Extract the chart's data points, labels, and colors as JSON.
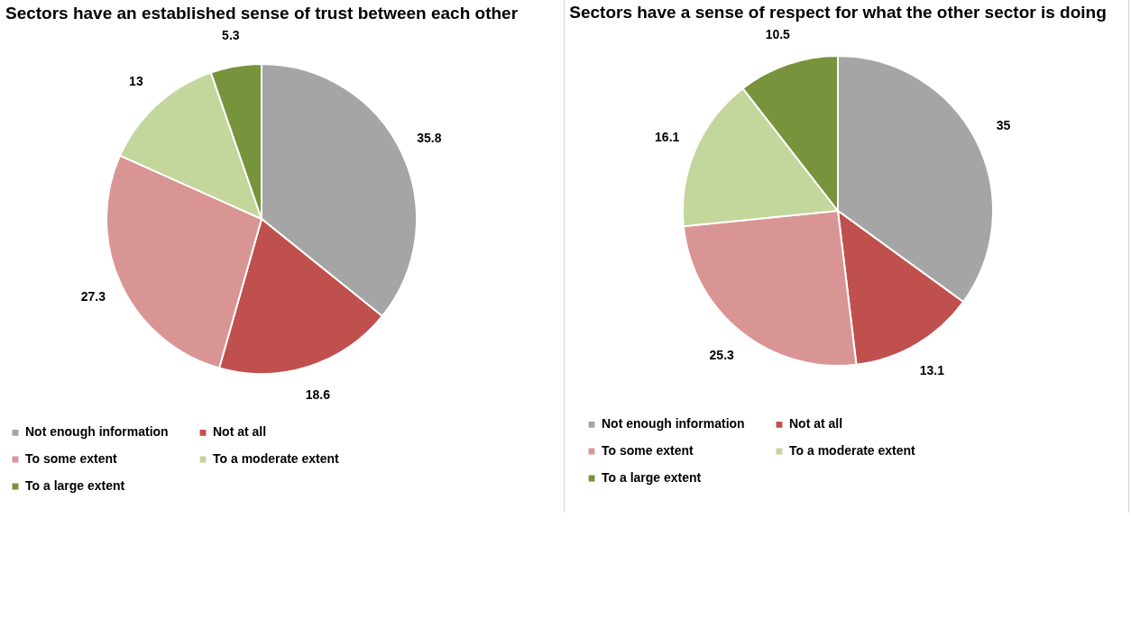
{
  "chart_data": [
    {
      "type": "pie",
      "title": "Sectors have an established sense of\ntrust between each other",
      "categories": [
        "Not enough information",
        "Not at all",
        "To some extent",
        "To a moderate extent",
        "To a large extent"
      ],
      "values": [
        35.8,
        18.6,
        27.3,
        13,
        5.3
      ],
      "colors": [
        "#a5a5a5",
        "#c0504d",
        "#d99594",
        "#c3d69b",
        "#77933c"
      ],
      "data_labels": true,
      "legend": "bottom"
    },
    {
      "type": "pie",
      "title": "Sectors have a sense of respect for\nwhat the other sector is doing",
      "categories": [
        "Not enough information",
        "Not at all",
        "To some extent",
        "To a moderate extent",
        "To a large extent"
      ],
      "values": [
        35,
        13.1,
        25.3,
        16.1,
        10.5
      ],
      "colors": [
        "#a5a5a5",
        "#c0504d",
        "#d99594",
        "#c3d69b",
        "#77933c"
      ],
      "data_labels": true,
      "legend": "bottom"
    }
  ]
}
